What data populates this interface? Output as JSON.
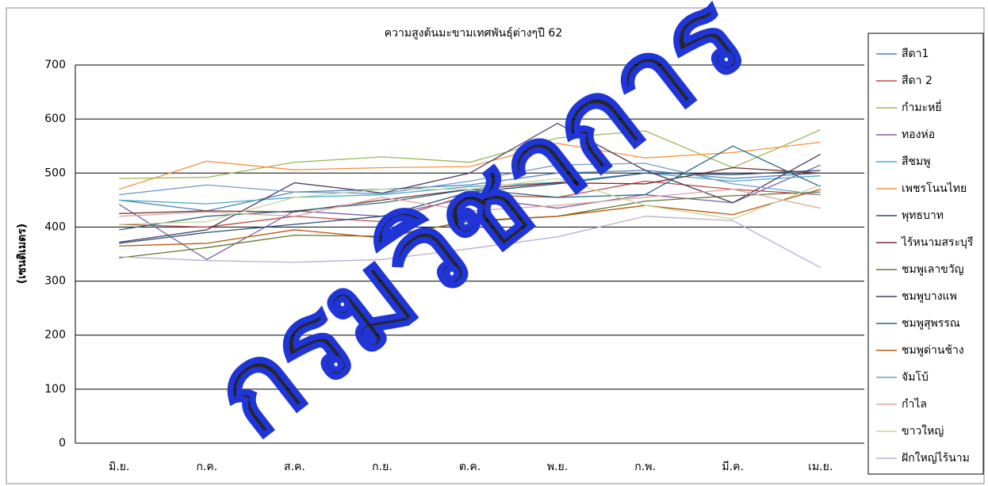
{
  "chart_data": {
    "type": "line",
    "title": "ความสูงต้นมะขามเทศพันธุ์ต่างๆปี 62",
    "y_label": "(เซนติเมตร)",
    "watermark": "กรมวิชาการ",
    "categories": [
      "มิ.ย.",
      "ก.ค.",
      "ส.ค.",
      "ก.ย.",
      "ต.ค.",
      "พ.ย.",
      "ก.พ.",
      "มี.ค.",
      "เม.ย."
    ],
    "ylim": [
      0,
      700
    ],
    "yticks": [
      0,
      100,
      200,
      300,
      400,
      500,
      600,
      700
    ],
    "grid": true,
    "legend": "right",
    "series": [
      {
        "name": "สีดา1",
        "color": "#4a7ebb",
        "values": [
          450,
          430,
          465,
          470,
          478,
          500,
          505,
          490,
          500
        ]
      },
      {
        "name": "สีดา 2",
        "color": "#be4b48",
        "values": [
          405,
          400,
          420,
          410,
          460,
          455,
          485,
          470,
          460
        ]
      },
      {
        "name": "กำมะหยี่",
        "color": "#98b954",
        "values": [
          490,
          492,
          520,
          530,
          520,
          565,
          578,
          510,
          580
        ]
      },
      {
        "name": "ทองห่อ",
        "color": "#7d60a0",
        "values": [
          442,
          340,
          430,
          420,
          455,
          435,
          460,
          445,
          515
        ]
      },
      {
        "name": "สีชมพู",
        "color": "#46aac5",
        "values": [
          450,
          443,
          455,
          460,
          475,
          483,
          500,
          485,
          495
        ]
      },
      {
        "name": "เพชรโนนไทย",
        "color": "#f69240",
        "values": [
          470,
          522,
          506,
          510,
          512,
          555,
          528,
          538,
          557
        ]
      },
      {
        "name": "พุทธบาท",
        "color": "#2c4d75",
        "values": [
          370,
          390,
          405,
          420,
          465,
          480,
          500,
          497,
          505
        ]
      },
      {
        "name": "ไร้หนามสระบุรี",
        "color": "#772c2a",
        "values": [
          425,
          430,
          428,
          450,
          470,
          482,
          480,
          510,
          500
        ]
      },
      {
        "name": "ชมพูเลาขวัญ",
        "color": "#5f7530",
        "values": [
          343,
          362,
          385,
          383,
          410,
          420,
          448,
          458,
          465
        ]
      },
      {
        "name": "ชมพูบางแพ",
        "color": "#4d3b62",
        "values": [
          372,
          395,
          482,
          463,
          500,
          592,
          505,
          445,
          535
        ]
      },
      {
        "name": "ชมพูสุพรรณ",
        "color": "#276a7c",
        "values": [
          395,
          420,
          430,
          445,
          470,
          455,
          460,
          550,
          475
        ]
      },
      {
        "name": "ชมพูด่านช้าง",
        "color": "#b65708",
        "values": [
          365,
          370,
          395,
          380,
          412,
          420,
          440,
          423,
          470
        ]
      },
      {
        "name": "จัมโบ้",
        "color": "#729aca",
        "values": [
          460,
          478,
          465,
          462,
          485,
          515,
          518,
          480,
          460
        ]
      },
      {
        "name": "กำไล",
        "color": "#d9a5a3",
        "values": [
          420,
          428,
          420,
          455,
          430,
          440,
          455,
          470,
          435
        ]
      },
      {
        "name": "ขาวใหญ่",
        "color": "#c3d69b",
        "values": [
          405,
          410,
          455,
          470,
          470,
          490,
          440,
          415,
          478
        ]
      },
      {
        "name": "ฝักใหญ่ไร้นาม",
        "color": "#b8afd0",
        "values": [
          345,
          338,
          335,
          340,
          360,
          382,
          420,
          412,
          325
        ]
      }
    ]
  }
}
